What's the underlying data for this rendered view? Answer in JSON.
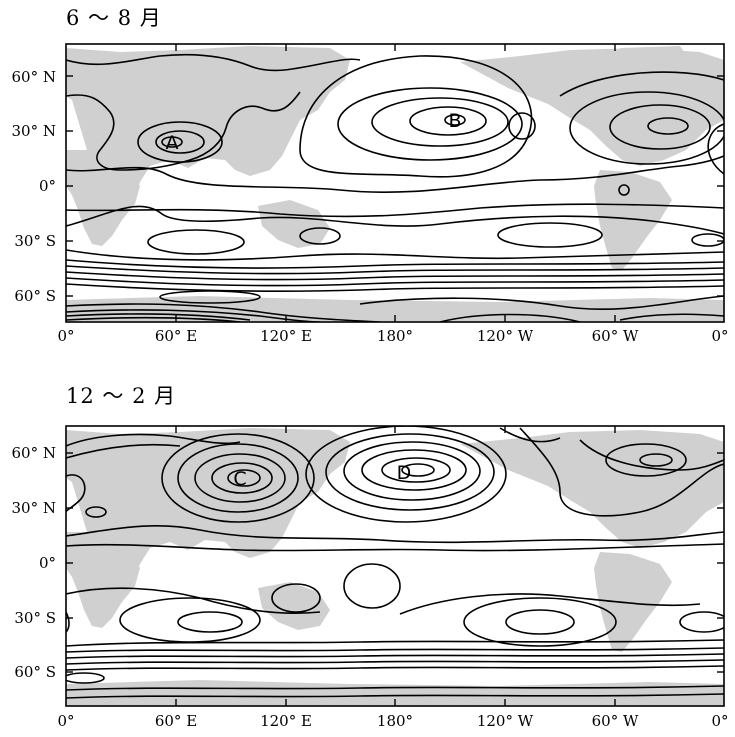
{
  "panels": [
    {
      "title": "6 ～ 8 月",
      "centers": [
        "A",
        "B"
      ]
    },
    {
      "title": "12 ～ 2 月",
      "centers": [
        "C",
        "D"
      ]
    }
  ],
  "axes": {
    "lat_labels": [
      "60° N",
      "30° N",
      "0°",
      "30° S",
      "60° S"
    ],
    "lon_labels": [
      "0°",
      "60° E",
      "120° E",
      "180°",
      "120° W",
      "60° W",
      "0°"
    ]
  },
  "colors": {
    "land_shading": "#d0d0d0",
    "contour": "#000000"
  }
}
